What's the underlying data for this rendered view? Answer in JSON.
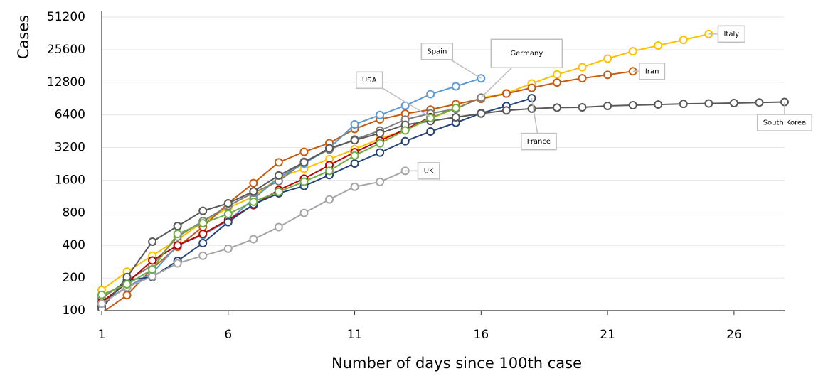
{
  "chart_data": {
    "type": "line",
    "y_title": "Cases",
    "x_title": "Number of days since 100th case",
    "log_y": true,
    "grid": true,
    "xlim": [
      1,
      28
    ],
    "xticks": [
      1,
      6,
      11,
      16,
      21,
      26
    ],
    "ylim": [
      100,
      51200
    ],
    "yticks": [
      100,
      200,
      400,
      800,
      1600,
      3200,
      6400,
      12800,
      25600,
      51200
    ],
    "x": [
      1,
      2,
      3,
      4,
      5,
      6,
      7,
      8,
      9,
      10,
      11,
      12,
      13,
      14,
      15,
      16,
      17,
      18,
      19,
      20,
      21,
      22,
      23,
      24,
      25,
      26,
      27,
      28
    ],
    "series": [
      {
        "name": "Italy",
        "color": "#ffc000",
        "values": [
          155,
          229,
          322,
          453,
          655,
          888,
          1128,
          1694,
          2036,
          2502,
          3089,
          3858,
          4636,
          5883,
          7375,
          9172,
          10149,
          12462,
          15113,
          17660,
          21157,
          24747,
          27980,
          31506,
          35713,
          null,
          null,
          null
        ]
      },
      {
        "name": "Iran",
        "color": "#c55a11",
        "values": [
          95,
          139,
          245,
          388,
          593,
          978,
          1501,
          2336,
          2922,
          3513,
          4747,
          5823,
          6566,
          7161,
          8042,
          9000,
          10075,
          11364,
          12729,
          13938,
          14991,
          16169,
          null,
          null,
          null,
          null,
          null,
          null
        ]
      },
      {
        "name": "Spain",
        "color": "#5b9bd5",
        "values": [
          120,
          165,
          222,
          400,
          500,
          673,
          1073,
          1695,
          2277,
          3146,
          5232,
          6391,
          7798,
          9942,
          11748,
          13910,
          null,
          null,
          null,
          null,
          null,
          null,
          null,
          null,
          null,
          null,
          null,
          null
        ]
      },
      {
        "name": "Germany",
        "color": "#7f7f7f",
        "values": [
          130,
          188,
          262,
          482,
          670,
          925,
          1224,
          1565,
          2369,
          3062,
          3795,
          4585,
          5795,
          6600,
          7272,
          9257,
          null,
          null,
          null,
          null,
          null,
          null,
          null,
          null,
          null,
          null,
          null,
          null
        ]
      },
      {
        "name": "USA",
        "color": "#c00000",
        "values": [
          120,
          180,
          290,
          400,
          510,
          690,
          940,
          1300,
          1650,
          2200,
          2900,
          3700,
          4700,
          6100,
          null,
          null,
          null,
          null,
          null,
          null,
          null,
          null,
          null,
          null,
          null,
          null,
          null,
          null
        ]
      },
      {
        "name": "France",
        "color": "#264478",
        "values": [
          110,
          191,
          204,
          288,
          420,
          656,
          957,
          1210,
          1412,
          1784,
          2281,
          2876,
          3661,
          4499,
          5423,
          6633,
          7730,
          9134,
          null,
          null,
          null,
          null,
          null,
          null,
          null,
          null,
          null,
          null
        ]
      },
      {
        "name": "South Korea",
        "color": "#595959",
        "values": [
          104,
          204,
          433,
          602,
          833,
          977,
          1261,
          1766,
          2337,
          3150,
          3736,
          4335,
          5186,
          5621,
          6088,
          6593,
          7041,
          7313,
          7478,
          7513,
          7755,
          7869,
          7979,
          8086,
          8162,
          8236,
          8320,
          8413
        ]
      },
      {
        "name": "UK",
        "color": "#a5a5a5",
        "values": [
          116,
          164,
          207,
          273,
          321,
          373,
          456,
          590,
          797,
          1061,
          1391,
          1543,
          1950,
          null,
          null,
          null,
          null,
          null,
          null,
          null,
          null,
          null,
          null,
          null,
          null,
          null,
          null,
          null
        ]
      },
      {
        "color": "#70ad47",
        "values": [
          140,
          175,
          240,
          510,
          640,
          780,
          1010,
          1250,
          1550,
          1950,
          2700,
          3500,
          4600,
          6000,
          7400,
          null,
          null,
          null,
          null,
          null,
          null,
          null,
          null,
          null,
          null,
          null,
          null,
          null
        ]
      }
    ]
  }
}
